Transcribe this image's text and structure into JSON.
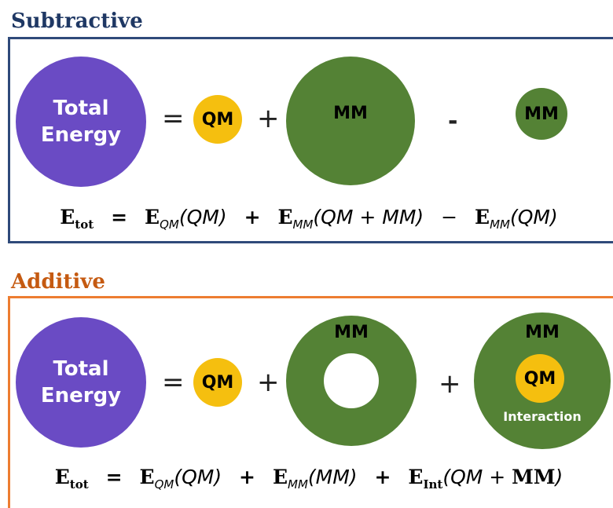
{
  "subtractive": {
    "title": "Subtractive",
    "total_energy_line1": "Total",
    "total_energy_line2": "Energy",
    "equals": "=",
    "qm_label": "QM",
    "plus": "+",
    "mm_large_label": "MM",
    "minus": "-",
    "mm_small_label": "MM",
    "equation": {
      "e_tot": "E",
      "tot_sub": "tot",
      "eq": "=",
      "e_qm": "E",
      "qm_sub": "QM",
      "qm_arg": "(QM)",
      "plus": "+",
      "e_mm": "E",
      "mm_sub": "MM",
      "mm_arg": "(QM + MM)",
      "minus": "−",
      "e_mm2": "E",
      "mm2_sub": "MM",
      "mm2_arg": "(QM)"
    }
  },
  "additive": {
    "title": "Additive",
    "total_energy_line1": "Total",
    "total_energy_line2": "Energy",
    "equals": "=",
    "qm_label": "QM",
    "plus": "+",
    "mm_ring_label": "MM",
    "plus2": "+",
    "mm_int_label": "MM",
    "qm_int_label": "QM",
    "interaction_label": "Interaction",
    "equation": {
      "e_tot": "E",
      "tot_sub": "tot",
      "eq": "=",
      "e_qm": "E",
      "qm_sub": "QM",
      "qm_arg": "(QM)",
      "plus": "+",
      "e_mm": "E",
      "mm_sub": "MM",
      "mm_arg": "(MM)",
      "plus2": "+",
      "e_int": "E",
      "int_sub": "Int",
      "int_arg_open": "(QM + ",
      "int_arg_mm": "MM",
      "int_arg_close": ")"
    }
  },
  "colors": {
    "subtractive_title": "#1f3864",
    "additive_title": "#c55a11",
    "purple": "#6a4bc4",
    "yellow": "#f5bf0f",
    "green": "#548235"
  }
}
